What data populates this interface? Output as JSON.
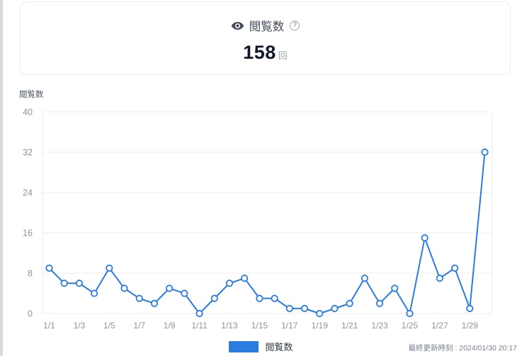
{
  "summary_card": {
    "title": "閲覧数",
    "help_glyph": "?",
    "value": "158",
    "unit": "回"
  },
  "chart": {
    "axis_title": "閲覧数",
    "legend": {
      "label": "閲覧数"
    },
    "last_updated": "最終更新時刻 : 2024/01/30 20:17"
  },
  "chart_data": {
    "type": "line",
    "title": "閲覧数",
    "x": [
      "1/1",
      "1/2",
      "1/3",
      "1/4",
      "1/5",
      "1/6",
      "1/7",
      "1/8",
      "1/9",
      "1/10",
      "1/11",
      "1/12",
      "1/13",
      "1/14",
      "1/15",
      "1/16",
      "1/17",
      "1/18",
      "1/19",
      "1/20",
      "1/21",
      "1/22",
      "1/23",
      "1/24",
      "1/25",
      "1/26",
      "1/27",
      "1/28",
      "1/29",
      "1/30"
    ],
    "values": [
      9,
      6,
      6,
      4,
      9,
      5,
      3,
      2,
      5,
      4,
      0,
      3,
      6,
      7,
      3,
      3,
      1,
      1,
      0,
      1,
      2,
      7,
      2,
      5,
      0,
      15,
      7,
      9,
      1,
      32
    ],
    "total": 158,
    "ylabel": "閲覧数",
    "ylim": [
      0,
      40
    ],
    "yticks": [
      0,
      8,
      16,
      24,
      32,
      40
    ],
    "xtick_every": 2,
    "grid": true,
    "legend_position": "bottom",
    "line_color": "#2b7ce0",
    "marker_fill": "#ffffff",
    "grid_color": "#ececf2",
    "tick_color": "#8b939f"
  }
}
